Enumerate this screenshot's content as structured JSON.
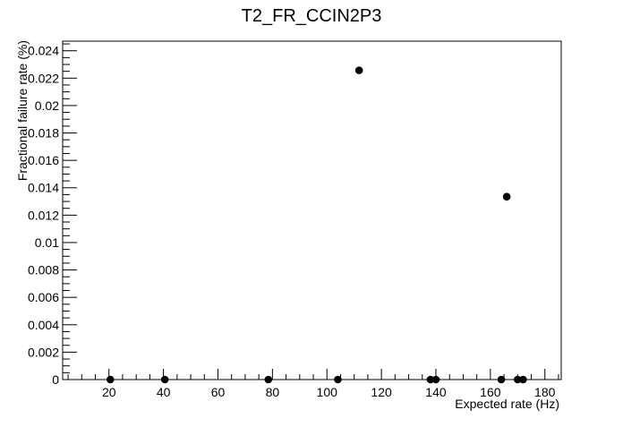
{
  "chart_data": {
    "type": "scatter",
    "title": "T2_FR_CCIN2P3",
    "xlabel": "Expected rate (Hz)",
    "ylabel": "Fractional failure rate (%)",
    "xlim": [
      3,
      186
    ],
    "ylim": [
      0,
      0.0247
    ],
    "grid": false,
    "legend": "none",
    "marker_color": "#000000",
    "x_ticks": [
      {
        "value": 20,
        "label": "20"
      },
      {
        "value": 40,
        "label": "40"
      },
      {
        "value": 60,
        "label": "60"
      },
      {
        "value": 80,
        "label": "80"
      },
      {
        "value": 100,
        "label": "100"
      },
      {
        "value": 120,
        "label": "120"
      },
      {
        "value": 140,
        "label": "140"
      },
      {
        "value": 160,
        "label": "160"
      },
      {
        "value": 180,
        "label": "180"
      }
    ],
    "y_ticks": [
      {
        "value": 0,
        "label": "0"
      },
      {
        "value": 0.002,
        "label": "0.002"
      },
      {
        "value": 0.004,
        "label": "0.004"
      },
      {
        "value": 0.006,
        "label": "0.006"
      },
      {
        "value": 0.008,
        "label": "0.008"
      },
      {
        "value": 0.01,
        "label": "0.01"
      },
      {
        "value": 0.012,
        "label": "0.012"
      },
      {
        "value": 0.014,
        "label": "0.014"
      },
      {
        "value": 0.016,
        "label": "0.016"
      },
      {
        "value": 0.018,
        "label": "0.018"
      },
      {
        "value": 0.02,
        "label": "0.02"
      },
      {
        "value": 0.022,
        "label": "0.022"
      },
      {
        "value": 0.024,
        "label": "0.024"
      }
    ],
    "points": [
      {
        "x": 20.5,
        "y": 0
      },
      {
        "x": 40.5,
        "y": 0
      },
      {
        "x": 78.5,
        "y": 0
      },
      {
        "x": 104,
        "y": 0
      },
      {
        "x": 111.8,
        "y": 0.02257
      },
      {
        "x": 138,
        "y": 0
      },
      {
        "x": 140,
        "y": 0
      },
      {
        "x": 164,
        "y": 0
      },
      {
        "x": 166,
        "y": 0.01335
      },
      {
        "x": 170,
        "y": 0
      },
      {
        "x": 172,
        "y": 0
      }
    ]
  }
}
